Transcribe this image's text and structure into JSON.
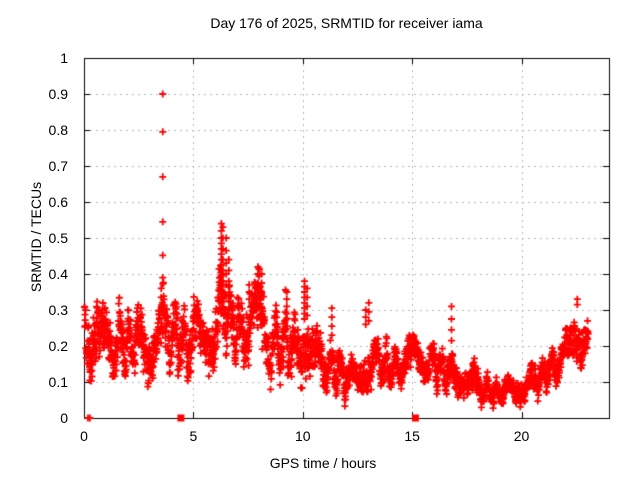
{
  "page": {
    "background": "#ffffff"
  },
  "chart_data": {
    "type": "scatter",
    "title": "Day 176 of 2025, SRMTID for receiver iama",
    "xlabel": "GPS time / hours",
    "ylabel": "SRMTID / TECUs",
    "xlim": [
      0,
      24
    ],
    "ylim": [
      0,
      1
    ],
    "grid": true,
    "legend": "none",
    "marker": "plus",
    "colors": {
      "points": "#ff0000",
      "grid": "#b8b8b8",
      "axis": "#000000",
      "text": "#000000"
    },
    "xticks": [
      {
        "v": 0,
        "label": "0"
      },
      {
        "v": 5,
        "label": "5"
      },
      {
        "v": 10,
        "label": "10"
      },
      {
        "v": 15,
        "label": "15"
      },
      {
        "v": 20,
        "label": "20"
      }
    ],
    "yticks": [
      {
        "v": 0.0,
        "label": "0"
      },
      {
        "v": 0.1,
        "label": "0.1"
      },
      {
        "v": 0.2,
        "label": "0.2"
      },
      {
        "v": 0.3,
        "label": "0.3"
      },
      {
        "v": 0.4,
        "label": "0.4"
      },
      {
        "v": 0.5,
        "label": "0.5"
      },
      {
        "v": 0.6,
        "label": "0.6"
      },
      {
        "v": 0.7,
        "label": "0.7"
      },
      {
        "v": 0.8,
        "label": "0.8"
      },
      {
        "v": 0.9,
        "label": "0.9"
      },
      {
        "v": 1.0,
        "label": "1"
      }
    ],
    "series": [
      {
        "name": "SRMTID",
        "style": "band-generated",
        "seed": 20250176,
        "points_per_hour": 116,
        "x_start": 0.02,
        "x_end": 23.05,
        "band_keyframes": [
          [
            0.0,
            0.1,
            0.4
          ],
          [
            0.3,
            0.1,
            0.36
          ],
          [
            0.7,
            0.1,
            0.32
          ],
          [
            1.2,
            0.11,
            0.3
          ],
          [
            1.7,
            0.1,
            0.32
          ],
          [
            2.2,
            0.11,
            0.31
          ],
          [
            2.7,
            0.1,
            0.33
          ],
          [
            3.2,
            0.1,
            0.32
          ],
          [
            3.6,
            0.1,
            0.36
          ],
          [
            4.0,
            0.12,
            0.35
          ],
          [
            4.5,
            0.1,
            0.31
          ],
          [
            5.0,
            0.12,
            0.33
          ],
          [
            5.5,
            0.13,
            0.31
          ],
          [
            6.0,
            0.14,
            0.34
          ],
          [
            6.3,
            0.16,
            0.48
          ],
          [
            6.6,
            0.15,
            0.42
          ],
          [
            7.0,
            0.13,
            0.34
          ],
          [
            7.5,
            0.14,
            0.37
          ],
          [
            8.0,
            0.12,
            0.41
          ],
          [
            8.5,
            0.1,
            0.33
          ],
          [
            9.0,
            0.09,
            0.3
          ],
          [
            9.3,
            0.1,
            0.34
          ],
          [
            9.7,
            0.08,
            0.26
          ],
          [
            10.1,
            0.1,
            0.36
          ],
          [
            10.5,
            0.08,
            0.26
          ],
          [
            11.0,
            0.06,
            0.21
          ],
          [
            11.5,
            0.06,
            0.22
          ],
          [
            12.0,
            0.05,
            0.18
          ],
          [
            12.5,
            0.06,
            0.16
          ],
          [
            13.0,
            0.07,
            0.24
          ],
          [
            13.5,
            0.08,
            0.22
          ],
          [
            14.0,
            0.06,
            0.2
          ],
          [
            14.5,
            0.08,
            0.22
          ],
          [
            15.0,
            0.09,
            0.24
          ],
          [
            15.5,
            0.1,
            0.22
          ],
          [
            16.0,
            0.08,
            0.22
          ],
          [
            16.5,
            0.07,
            0.19
          ],
          [
            17.0,
            0.06,
            0.18
          ],
          [
            17.5,
            0.04,
            0.15
          ],
          [
            18.0,
            0.03,
            0.15
          ],
          [
            18.5,
            0.03,
            0.12
          ],
          [
            19.0,
            0.03,
            0.11
          ],
          [
            19.5,
            0.04,
            0.12
          ],
          [
            20.0,
            0.04,
            0.13
          ],
          [
            20.5,
            0.05,
            0.15
          ],
          [
            21.0,
            0.06,
            0.17
          ],
          [
            21.5,
            0.08,
            0.2
          ],
          [
            22.0,
            0.1,
            0.24
          ],
          [
            22.4,
            0.13,
            0.3
          ],
          [
            22.7,
            0.14,
            0.32
          ],
          [
            23.05,
            0.13,
            0.27
          ]
        ],
        "spike_columns": [
          {
            "x": 3.6,
            "ys": [
              0.9,
              0.795,
              0.67,
              0.545,
              0.452,
              0.39
            ]
          },
          {
            "x": 3.53,
            "ys": [
              0.36,
              0.335,
              0.31
            ]
          },
          {
            "x": 6.28,
            "ys": [
              0.54,
              0.52,
              0.5,
              0.485,
              0.47,
              0.455,
              0.44,
              0.425,
              0.41,
              0.395,
              0.38,
              0.365,
              0.35,
              0.335,
              0.32,
              0.305,
              0.29
            ]
          },
          {
            "x": 6.35,
            "ys": [
              0.53,
              0.5,
              0.47,
              0.44,
              0.41,
              0.38,
              0.35
            ]
          },
          {
            "x": 6.5,
            "ys": [
              0.5,
              0.465,
              0.43,
              0.4,
              0.37,
              0.34
            ]
          },
          {
            "x": 6.62,
            "ys": [
              0.44,
              0.41,
              0.38
            ]
          },
          {
            "x": 7.55,
            "ys": [
              0.37,
              0.35,
              0.33
            ]
          },
          {
            "x": 7.95,
            "ys": [
              0.42,
              0.4,
              0.375,
              0.35
            ]
          },
          {
            "x": 8.12,
            "ys": [
              0.4,
              0.375,
              0.35
            ]
          },
          {
            "x": 9.27,
            "ys": [
              0.35,
              0.33,
              0.31,
              0.29
            ]
          },
          {
            "x": 10.08,
            "ys": [
              0.38,
              0.365,
              0.35,
              0.335,
              0.32,
              0.305,
              0.29,
              0.275
            ]
          },
          {
            "x": 10.2,
            "ys": [
              0.36,
              0.335,
              0.31,
              0.285
            ]
          },
          {
            "x": 11.33,
            "ys": [
              0.305,
              0.28,
              0.255,
              0.23
            ]
          },
          {
            "x": 12.88,
            "ys": [
              0.3,
              0.28,
              0.26
            ]
          },
          {
            "x": 13.02,
            "ys": [
              0.32,
              0.295,
              0.27
            ]
          },
          {
            "x": 16.8,
            "ys": [
              0.31,
              0.275,
              0.245,
              0.215
            ]
          },
          {
            "x": 22.55,
            "ys": [
              0.33,
              0.315
            ]
          }
        ]
      }
    ],
    "gap_markers_squares_x": [
      4.43,
      15.15
    ],
    "zero_plus_markers_x": [
      0.18,
      0.27
    ]
  }
}
